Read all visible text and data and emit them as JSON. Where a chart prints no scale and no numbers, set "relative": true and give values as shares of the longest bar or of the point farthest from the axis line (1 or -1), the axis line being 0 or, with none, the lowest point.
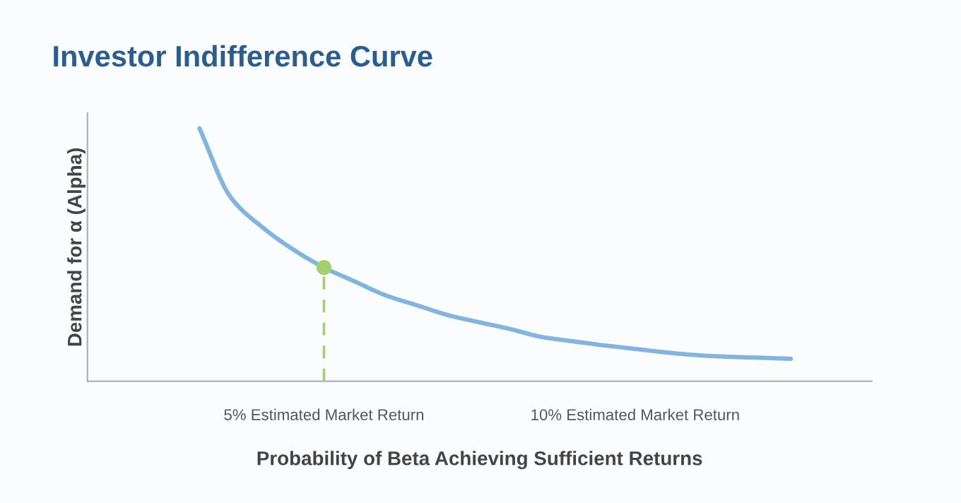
{
  "chart_data": {
    "type": "line",
    "title": "Investor Indifference Curve",
    "xlabel": "Probability of Beta Achieving Sufficient Returns",
    "ylabel": "Demand for α (Alpha)",
    "relative": true,
    "categories": [
      null,
      null,
      null,
      null,
      "5% Estimated Market Return",
      null,
      null,
      null,
      null,
      null,
      null,
      null,
      null,
      null,
      "10% Estimated Market Return",
      null,
      null,
      null,
      null,
      null
    ],
    "tick_labels": "x",
    "grid": false,
    "legend": false,
    "series": [
      {
        "color": "#82b4de",
        "values": [
          1.0,
          0.728,
          0.611,
          0.522,
          0.45,
          0.394,
          0.339,
          0.3,
          0.261,
          0.233,
          0.206,
          0.175,
          0.158,
          0.142,
          0.128,
          0.114,
          0.103,
          0.097,
          0.093,
          0.089
        ],
        "line_style": "solid",
        "marker": "none"
      },
      {
        "type": "lollipop",
        "color": "#a6cf6f",
        "values": [
          null,
          null,
          null,
          null,
          0.45,
          null,
          null,
          null,
          null,
          null,
          null,
          null,
          null,
          null,
          null,
          null,
          null,
          null,
          null,
          null
        ],
        "line_style": "dashed",
        "marker": "circle"
      }
    ]
  }
}
